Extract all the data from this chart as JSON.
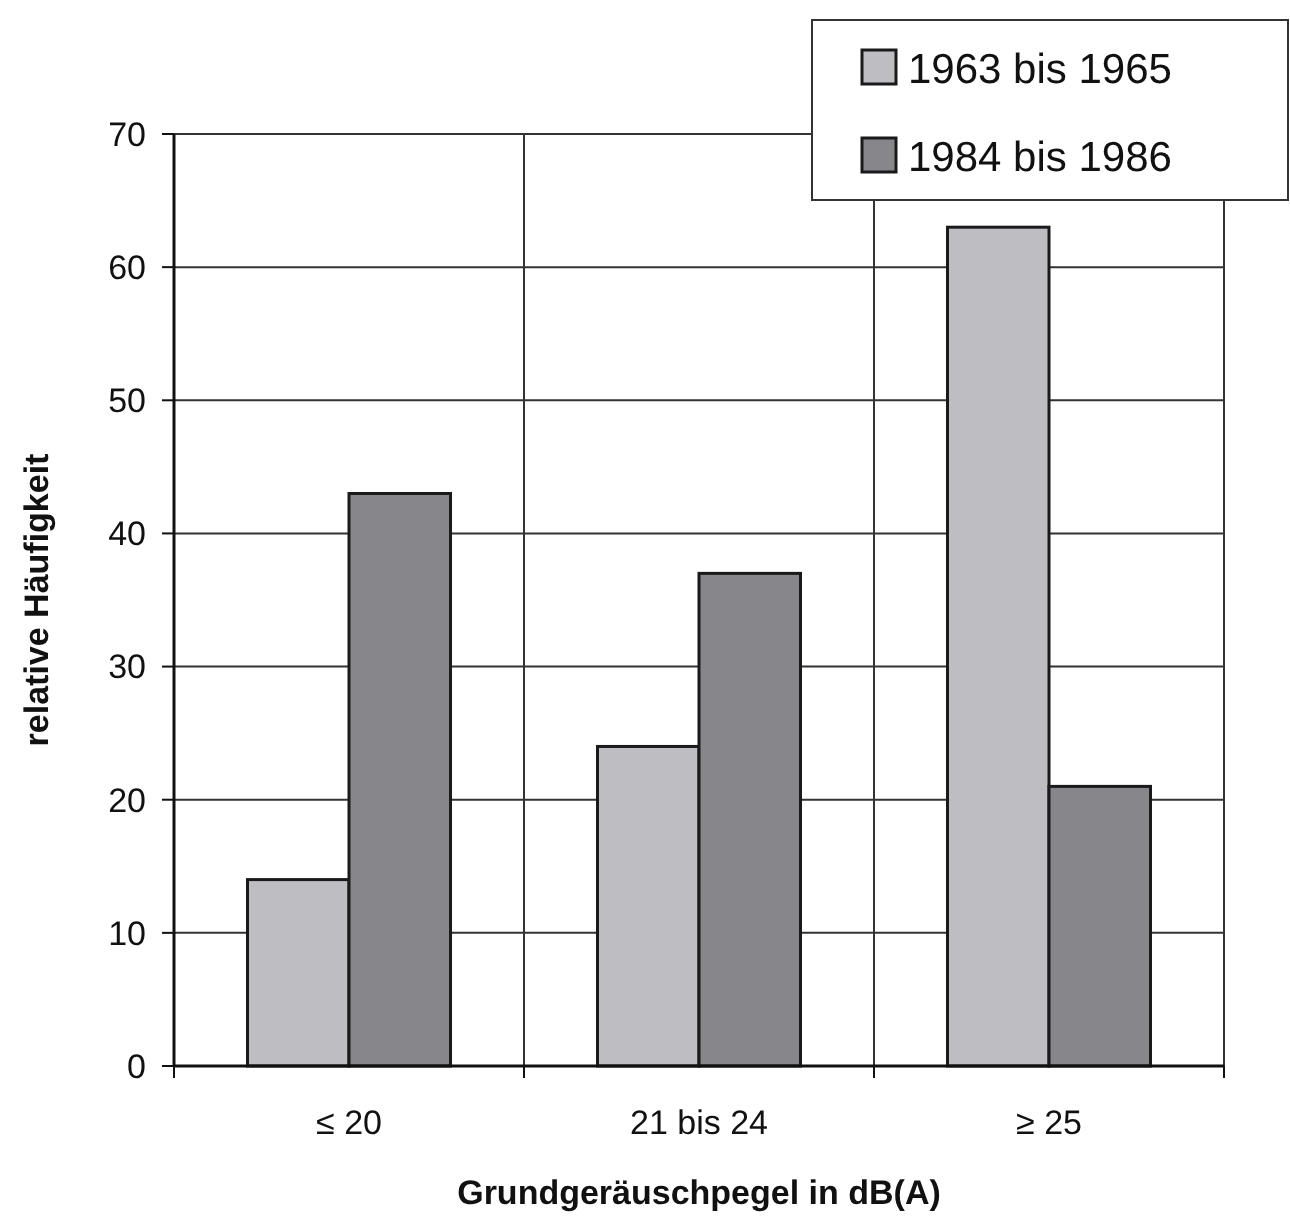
{
  "chart_data": {
    "type": "bar",
    "xlabel": "Grundgeräuschpegel in dB(A)",
    "ylabel": "relative Häufigkeit",
    "categories": [
      "≤ 20",
      "21 bis 24",
      "≥ 25"
    ],
    "series": [
      {
        "name": "1963 bis 1965",
        "color": "#bebec2",
        "values": [
          14,
          24,
          63
        ]
      },
      {
        "name": "1984 bis 1986",
        "color": "#87878b",
        "values": [
          43,
          37,
          21
        ]
      }
    ],
    "ylim": [
      0,
      70
    ],
    "yticks": [
      0,
      10,
      20,
      30,
      40,
      50,
      60,
      70
    ],
    "grid": true,
    "legend": "top right"
  }
}
